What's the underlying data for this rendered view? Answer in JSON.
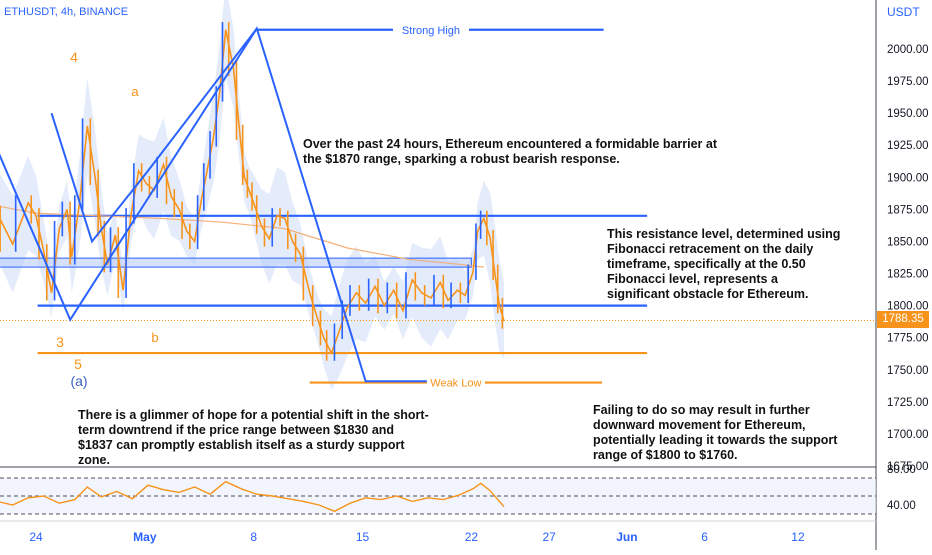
{
  "header": {
    "title": "ETHUSDT, 4h, BINANCE",
    "currency": "USDT"
  },
  "annotations": {
    "strong_high": "Strong High",
    "weak_low": "Weak Low",
    "wave_4": "4",
    "wave_a": "a",
    "wave_3": "3",
    "wave_b": "b",
    "wave_5": "5",
    "wave_A": "(a)"
  },
  "notes": {
    "barrier": "Over the past 24 hours, Ethereum encountered a formidable barrier at the $1870 range, sparking a robust bearish response.",
    "resistance": "This resistance level, determined using Fibonacci retracement on the daily timeframe, specifically at the 0.50 Fibonacci level, represents a significant obstacle for Ethereum.",
    "hope": "There is a glimmer of hope for a potential shift in the short-term downtrend if the price range between $1830 and $1837 can promptly establish itself as a sturdy support zone.",
    "failing": "Failing to do so may result in further downward movement for Ethereum, potentially leading it towards the support range of $1800 to $1760."
  },
  "colors": {
    "blue": "#2962ff",
    "orange": "#f7931a",
    "band_fill": "#dbe6fb"
  },
  "chart_data": {
    "type": "line",
    "title": "ETHUSDT, 4h, BINANCE",
    "y_axis": {
      "label": "USDT",
      "range": [
        1665,
        2035
      ],
      "ticks": [
        2000.0,
        1975.0,
        1950.0,
        1925.0,
        1900.0,
        1875.0,
        1850.0,
        1825.0,
        1800.0,
        1775.0,
        1750.0,
        1725.0,
        1700.0,
        1675.0
      ],
      "tick_labels": [
        "2000.00",
        "1975.00",
        "1950.00",
        "1925.00",
        "1900.00",
        "1875.00",
        "1850.00",
        "1825.00",
        "1800.00",
        "1775.00",
        "1750.00",
        "1725.00",
        "1700.00",
        "1675.00"
      ]
    },
    "x_axis": {
      "tick_labels": [
        "24",
        "May",
        "8",
        "15",
        "22",
        "27",
        "Jun",
        "6",
        "12"
      ],
      "tick_days": [
        0,
        7,
        14,
        21,
        28,
        33,
        38,
        43,
        49
      ]
    },
    "current_price": "1788.35",
    "levels": [
      {
        "name": "Strong High",
        "price": 2015
      },
      {
        "name": "Resistance",
        "price": 1870
      },
      {
        "name": "Support",
        "price": 1800
      },
      {
        "name": "Weak Low",
        "price": 1740
      },
      {
        "name": "Wave low",
        "price": 1763
      }
    ],
    "zone": {
      "from": 1830,
      "to": 1837
    },
    "close_path": {
      "x": [
        -3.5,
        -2.5,
        -1.5,
        -0.5,
        0,
        0.5,
        1,
        1.5,
        2,
        2.3,
        2.8,
        3.3,
        3.8,
        4.2,
        4.6,
        5.1,
        5.6,
        6.1,
        6.6,
        7.1,
        7.6,
        8.2,
        8.7,
        9.2,
        9.7,
        10.2,
        10.6,
        11.0,
        11.4,
        11.8,
        12.2,
        12.7,
        13.1,
        13.4,
        13.7,
        14.0,
        14.5,
        15.0,
        15.5,
        16,
        16.5,
        17,
        17.6,
        18.1,
        18.5,
        19.0,
        19.5,
        20.0,
        20.6,
        21.2,
        21.8,
        22.4,
        23.0,
        23.6,
        24.2,
        24.8,
        25.4,
        26.0,
        26.5,
        27.1,
        27.6,
        28.1,
        28.4,
        28.8,
        29.2,
        29.5,
        29.8,
        30.1
      ],
      "y": [
        1855,
        1872,
        1848,
        1880,
        1870,
        1842,
        1810,
        1860,
        1875,
        1838,
        1880,
        1940,
        1900,
        1860,
        1832,
        1855,
        1812,
        1870,
        1905,
        1895,
        1890,
        1910,
        1885,
        1875,
        1858,
        1850,
        1880,
        1905,
        1930,
        1965,
        2015,
        1985,
        1935,
        1900,
        1890,
        1880,
        1862,
        1852,
        1870,
        1868,
        1850,
        1840,
        1810,
        1790,
        1775,
        1763,
        1780,
        1798,
        1810,
        1802,
        1815,
        1800,
        1812,
        1796,
        1820,
        1810,
        1806,
        1818,
        1804,
        1812,
        1808,
        1826,
        1858,
        1868,
        1853,
        1826,
        1800,
        1788
      ]
    },
    "moving_average": {
      "x": [
        -3.5,
        0,
        4,
        8,
        12,
        16,
        20,
        24,
        27.4,
        28.8
      ],
      "y": [
        1880,
        1872,
        1870,
        1868,
        1865,
        1860,
        1845,
        1836,
        1832,
        1830
      ]
    },
    "structure_lines": [
      {
        "x": [
          -3.5,
          2.2,
          14.2,
          21.2,
          25.4
        ],
        "y": [
          1950,
          1789,
          2016,
          1741,
          1741
        ]
      },
      {
        "x": [
          1.0,
          3.6,
          7.2,
          14.2
        ],
        "y": [
          1950,
          1850,
          1905,
          2016
        ]
      }
    ],
    "rsi": {
      "range": [
        20,
        90
      ],
      "tick_labels": [
        "80.00",
        "40.00"
      ],
      "levels": [
        70,
        50,
        30
      ],
      "x": [
        -3.5,
        -2.5,
        -1.5,
        -0.5,
        0.5,
        1.5,
        2.5,
        3.3,
        4.2,
        5.2,
        6.2,
        7.2,
        8.2,
        9.2,
        10.2,
        11.2,
        12.2,
        13.2,
        14.2,
        15.2,
        16.2,
        17.2,
        18.2,
        19.2,
        20.2,
        21.2,
        22.2,
        23.2,
        24.2,
        25.2,
        26.2,
        27.2,
        28.1,
        28.6,
        29.2,
        30.1
      ],
      "y": [
        37,
        44,
        40,
        48,
        50,
        42,
        46,
        60,
        49,
        55,
        47,
        62,
        57,
        54,
        60,
        52,
        66,
        58,
        52,
        50,
        47,
        44,
        40,
        33,
        42,
        48,
        46,
        50,
        44,
        48,
        46,
        51,
        58,
        64,
        56,
        38
      ]
    }
  }
}
